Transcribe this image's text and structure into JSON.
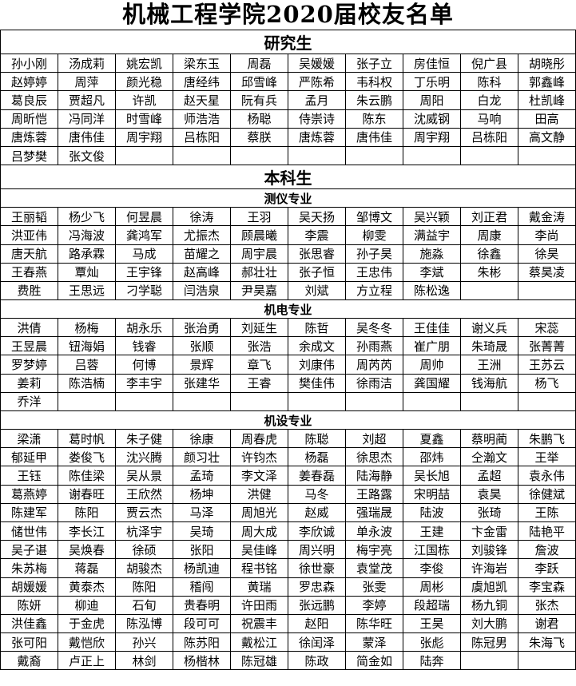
{
  "title": "机械工程学院2020届校友名单",
  "sections": [
    {
      "label": "研究生",
      "groups": [
        {
          "label": "",
          "rows": [
            [
              "孙小刚",
              "汤成莉",
              "姚宏凯",
              "梁东玉",
              "周磊",
              "吴媛媛",
              "张子立",
              "房佳恒",
              "倪广县",
              "胡晓彤"
            ],
            [
              "赵婷婷",
              "周萍",
              "颜光稳",
              "唐经纬",
              "邱雪峰",
              "严陈希",
              "韦科权",
              "丁乐明",
              "陈科",
              "郭鑫峰"
            ],
            [
              "葛良辰",
              "贾超凡",
              "许凯",
              "赵天星",
              "阮有兵",
              "孟月",
              "朱云鹏",
              "周阳",
              "白龙",
              "杜凯峰"
            ],
            [
              "周昕恺",
              "冯同洋",
              "时雪峰",
              "师浩浩",
              "杨聪",
              "侍崇诗",
              "陈东",
              "沈威钢",
              "马响",
              "田高"
            ],
            [
              "唐炼蓉",
              "唐伟佳",
              "周宇翔",
              "吕栋阳",
              "蔡朕",
              "唐炼蓉",
              "唐伟佳",
              "周宇翔",
              "吕栋阳",
              "高文静"
            ],
            [
              "吕梦樊",
              "张文俊",
              "",
              "",
              "",
              "",
              "",
              "",
              "",
              ""
            ]
          ]
        }
      ]
    },
    {
      "label": "本科生",
      "groups": [
        {
          "label": "测仪专业",
          "rows": [
            [
              "王丽韬",
              "杨少飞",
              "何昱晨",
              "徐涛",
              "王羽",
              "吴天扬",
              "邹博文",
              "吴兴颖",
              "刘正君",
              "戴金涛"
            ],
            [
              "洪亚伟",
              "冯海波",
              "龚鸿军",
              "尤振杰",
              "顾晨曦",
              "李震",
              "柳雯",
              "满益宇",
              "周康",
              "李尚"
            ],
            [
              "唐天航",
              "路承霖",
              "马成",
              "苗耀之",
              "周宇晨",
              "张思睿",
              "孙子昊",
              "施淼",
              "徐鑫",
              "徐昊"
            ],
            [
              "王春燕",
              "覃灿",
              "王宇锋",
              "赵高峰",
              "郝壮壮",
              "张子恒",
              "王忠伟",
              "李斌",
              "朱彬",
              "蔡昊凌"
            ],
            [
              "费胜",
              "王思远",
              "刁学聪",
              "闫浩泉",
              "尹昊嘉",
              "刘斌",
              "方立程",
              "陈松逸",
              "",
              ""
            ]
          ]
        },
        {
          "label": "机电专业",
          "rows": [
            [
              "洪倩",
              "杨梅",
              "胡永乐",
              "张治勇",
              "刘延生",
              "陈哲",
              "吴冬冬",
              "王佳佳",
              "谢义兵",
              "宋蕊"
            ],
            [
              "王昱晨",
              "钮海娟",
              "钱睿",
              "张顺",
              "张浩",
              "余成文",
              "孙雨燕",
              "崔广朋",
              "朱琦晟",
              "张菁菁"
            ],
            [
              "罗梦婷",
              "吕蓉",
              "何博",
              "景辉",
              "章飞",
              "刘康伟",
              "周芮芮",
              "周帅",
              "王洲",
              "王苏云"
            ],
            [
              "姜莉",
              "陈浩楠",
              "李丰宇",
              "张建华",
              "王睿",
              "樊佳伟",
              "徐雨洁",
              "龚国耀",
              "钱海航",
              "杨飞"
            ],
            [
              "乔洋",
              "",
              "",
              "",
              "",
              "",
              "",
              "",
              "",
              ""
            ]
          ]
        },
        {
          "label": "机设专业",
          "rows": [
            [
              "梁潇",
              "葛时帆",
              "朱子健",
              "徐康",
              "周春虎",
              "陈聪",
              "刘超",
              "夏鑫",
              "蔡明蔺",
              "朱鹏飞"
            ],
            [
              "郁延甲",
              "娄俊飞",
              "沈兴腾",
              "颜习壮",
              "许钧杰",
              "杨磊",
              "徐思杰",
              "邵炜",
              "仝瀚文",
              "王举"
            ],
            [
              "王钰",
              "陈佳梁",
              "吴从景",
              "孟琦",
              "李文泽",
              "姜春磊",
              "陆海静",
              "吴长旭",
              "孟超",
              "袁永伟"
            ],
            [
              "葛燕婷",
              "谢春旺",
              "王欣然",
              "杨坤",
              "洪健",
              "马冬",
              "王路露",
              "宋明喆",
              "袁昊",
              "徐健斌"
            ],
            [
              "陈建军",
              "陈阳",
              "贾云杰",
              "马泽",
              "周旭光",
              "赵威",
              "强瑞晟",
              "陆波",
              "张琦",
              "王陈"
            ],
            [
              "储世伟",
              "李长江",
              "杭泽宇",
              "吴琦",
              "周大成",
              "李欣诚",
              "单永波",
              "王建",
              "卞金雷",
              "陆艳平"
            ],
            [
              "吴子谌",
              "吴焕春",
              "徐硕",
              "张阳",
              "吴佳峰",
              "周兴明",
              "梅宇亮",
              "江国栋",
              "刘骏锋",
              "詹波"
            ],
            [
              "朱苏梅",
              "蒋磊",
              "胡骏杰",
              "杨凯迪",
              "程书铭",
              "徐世豪",
              "袁堂茂",
              "李俊",
              "许海岩",
              "李跃"
            ],
            [
              "胡媛媛",
              "黄泰杰",
              "陈阳",
              "稽闯",
              "黄瑞",
              "罗忠森",
              "张雯",
              "周彬",
              "虞旭凯",
              "李宝森"
            ],
            [
              "陈妍",
              "柳迪",
              "石旬",
              "贵春明",
              "许田雨",
              "张远鹏",
              "李婷",
              "段超瑞",
              "杨九铜",
              "张杰"
            ],
            [
              "洪佳鑫",
              "于金虎",
              "陈泓博",
              "段可可",
              "祝震丰",
              "赵阳",
              "陈华旺",
              "王昊",
              "刘大鹏",
              "谢君"
            ],
            [
              "张可阳",
              "戴恺欣",
              "孙兴",
              "陈苏阳",
              "戴松江",
              "徐闰泽",
              "蒙泽",
              "张彪",
              "陈冠男",
              "朱海飞"
            ],
            [
              "戴裔",
              "卢正上",
              "林剑",
              "杨楷林",
              "陈冠雄",
              "陈政",
              "简金如",
              "陆奔",
              "",
              ""
            ]
          ]
        }
      ]
    }
  ]
}
